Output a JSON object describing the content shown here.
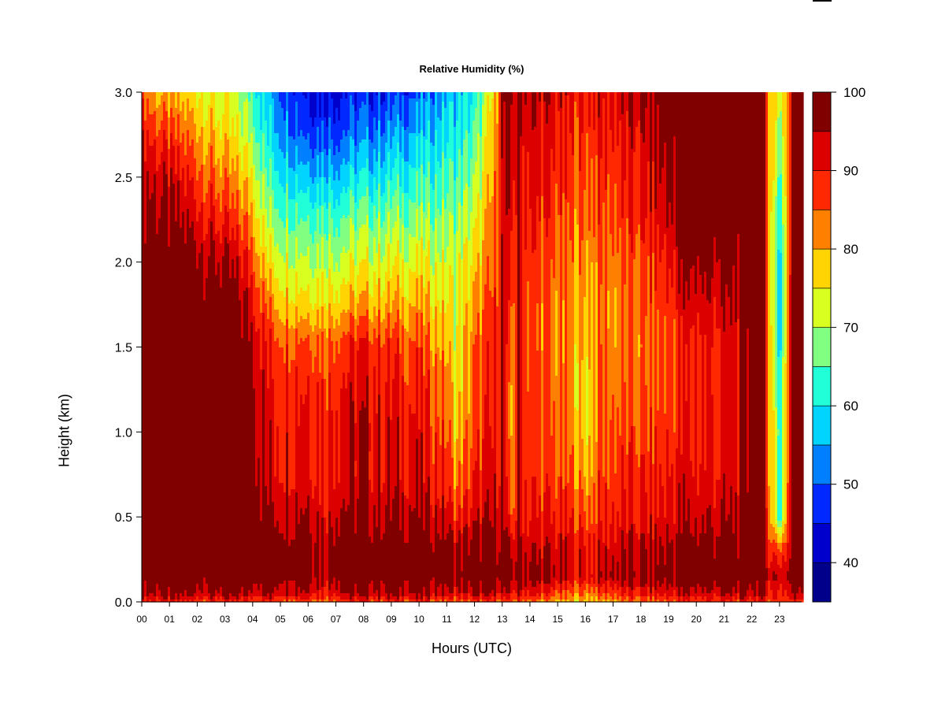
{
  "chart_data": {
    "type": "heatmap",
    "title": "Relative Humidity (%)",
    "xlabel": "Hours (UTC)",
    "ylabel": "Height (km)",
    "x_ticks": [
      "00",
      "01",
      "02",
      "03",
      "04",
      "05",
      "06",
      "07",
      "08",
      "09",
      "10",
      "11",
      "12",
      "13",
      "14",
      "15",
      "16",
      "17",
      "18",
      "19",
      "20",
      "21",
      "22",
      "23"
    ],
    "y_ticks": [
      "0.0",
      "0.5",
      "1.0",
      "1.5",
      "2.0",
      "2.5",
      "3.0"
    ],
    "xlim": [
      0,
      23.8
    ],
    "ylim": [
      0,
      3.0
    ],
    "colorbar": {
      "range": [
        35,
        100
      ],
      "ticks": [
        "40",
        "50",
        "60",
        "70",
        "80",
        "90",
        "100"
      ],
      "levels": [
        {
          "from": 35,
          "to": 40,
          "color": "#00008b"
        },
        {
          "from": 40,
          "to": 45,
          "color": "#0000cd"
        },
        {
          "from": 45,
          "to": 50,
          "color": "#0028ff"
        },
        {
          "from": 50,
          "to": 55,
          "color": "#0080ff"
        },
        {
          "from": 55,
          "to": 60,
          "color": "#00d4ff"
        },
        {
          "from": 60,
          "to": 65,
          "color": "#20ffd8"
        },
        {
          "from": 65,
          "to": 70,
          "color": "#80ff80"
        },
        {
          "from": 70,
          "to": 75,
          "color": "#d8ff20"
        },
        {
          "from": 75,
          "to": 80,
          "color": "#ffd400"
        },
        {
          "from": 80,
          "to": 85,
          "color": "#ff8000"
        },
        {
          "from": 85,
          "to": 90,
          "color": "#ff2800"
        },
        {
          "from": 90,
          "to": 95,
          "color": "#dc0000"
        },
        {
          "from": 95,
          "to": 100,
          "color": "#800000"
        }
      ]
    },
    "heights_km": [
      0.0,
      0.05,
      0.15,
      0.3,
      0.5,
      0.75,
      1.0,
      1.25,
      1.5,
      1.75,
      2.0,
      2.25,
      2.5,
      2.75,
      3.0
    ],
    "profiles": [
      {
        "hour": 0.0,
        "rh": [
          90,
          96,
          100,
          100,
          100,
          100,
          100,
          100,
          100,
          100,
          100,
          98,
          96,
          92,
          86
        ]
      },
      {
        "hour": 0.5,
        "rh": [
          90,
          96,
          100,
          100,
          100,
          100,
          100,
          100,
          100,
          100,
          100,
          97,
          94,
          88,
          80
        ]
      },
      {
        "hour": 1.0,
        "rh": [
          90,
          96,
          100,
          100,
          100,
          100,
          100,
          100,
          100,
          100,
          99,
          96,
          92,
          86,
          78
        ]
      },
      {
        "hour": 2.0,
        "rh": [
          88,
          96,
          100,
          100,
          100,
          100,
          100,
          100,
          100,
          100,
          98,
          93,
          88,
          82,
          76
        ]
      },
      {
        "hour": 3.0,
        "rh": [
          88,
          96,
          100,
          100,
          100,
          100,
          100,
          100,
          100,
          99,
          95,
          88,
          82,
          76,
          72
        ]
      },
      {
        "hour": 4.0,
        "rh": [
          88,
          96,
          100,
          100,
          100,
          100,
          100,
          99,
          97,
          93,
          88,
          82,
          76,
          70,
          65
        ]
      },
      {
        "hour": 4.5,
        "rh": [
          88,
          96,
          100,
          100,
          97,
          93,
          92,
          91,
          90,
          84,
          76,
          70,
          65,
          60,
          57
        ]
      },
      {
        "hour": 5.0,
        "rh": [
          88,
          96,
          100,
          100,
          96,
          92,
          92,
          90,
          88,
          80,
          74,
          68,
          62,
          56,
          52
        ]
      },
      {
        "hour": 6.0,
        "rh": [
          88,
          96,
          100,
          100,
          97,
          93,
          93,
          91,
          88,
          78,
          72,
          66,
          58,
          50,
          45
        ]
      },
      {
        "hour": 6.7,
        "rh": [
          85,
          90,
          96,
          96,
          92,
          90,
          90,
          88,
          86,
          78,
          72,
          66,
          58,
          50,
          45
        ]
      },
      {
        "hour": 7.0,
        "rh": [
          88,
          96,
          100,
          100,
          97,
          93,
          93,
          91,
          88,
          79,
          72,
          66,
          58,
          50,
          45
        ]
      },
      {
        "hour": 8.0,
        "rh": [
          88,
          96,
          100,
          100,
          96,
          93,
          94,
          92,
          90,
          80,
          73,
          67,
          59,
          52,
          46
        ]
      },
      {
        "hour": 9.0,
        "rh": [
          88,
          96,
          100,
          100,
          96,
          92,
          92,
          90,
          88,
          80,
          74,
          68,
          61,
          54,
          47
        ]
      },
      {
        "hour": 10.0,
        "rh": [
          88,
          96,
          100,
          100,
          96,
          92,
          91,
          89,
          86,
          80,
          74,
          68,
          62,
          56,
          50
        ]
      },
      {
        "hour": 11.0,
        "rh": [
          86,
          94,
          100,
          99,
          93,
          88,
          86,
          84,
          80,
          76,
          72,
          68,
          64,
          60,
          56
        ]
      },
      {
        "hour": 11.3,
        "rh": [
          84,
          92,
          98,
          96,
          88,
          82,
          78,
          75,
          74,
          73,
          72,
          68,
          64,
          60,
          57
        ]
      },
      {
        "hour": 12.0,
        "rh": [
          86,
          94,
          100,
          98,
          92,
          88,
          86,
          84,
          83,
          80,
          76,
          72,
          68,
          64,
          60
        ]
      },
      {
        "hour": 12.7,
        "rh": [
          86,
          94,
          100,
          98,
          94,
          91,
          90,
          89,
          88,
          86,
          84,
          82,
          80,
          78,
          76
        ]
      },
      {
        "hour": 13.0,
        "rh": [
          86,
          94,
          100,
          99,
          96,
          94,
          94,
          94,
          94,
          94,
          94,
          93,
          93,
          94,
          95
        ]
      },
      {
        "hour": 13.3,
        "rh": [
          84,
          90,
          96,
          94,
          84,
          80,
          78,
          78,
          80,
          84,
          88,
          90,
          92,
          94,
          95
        ]
      },
      {
        "hour": 13.6,
        "rh": [
          86,
          94,
          99,
          96,
          94,
          92,
          92,
          92,
          92,
          92,
          92,
          92,
          93,
          95,
          96
        ]
      },
      {
        "hour": 14.0,
        "rh": [
          84,
          92,
          97,
          94,
          90,
          88,
          88,
          87,
          86,
          86,
          88,
          90,
          92,
          93,
          95
        ]
      },
      {
        "hour": 15.0,
        "rh": [
          80,
          86,
          94,
          93,
          89,
          86,
          84,
          83,
          82,
          82,
          84,
          86,
          88,
          90,
          92
        ]
      },
      {
        "hour": 15.5,
        "rh": [
          78,
          84,
          92,
          92,
          88,
          84,
          82,
          80,
          80,
          80,
          82,
          84,
          86,
          88,
          90
        ]
      },
      {
        "hour": 16.0,
        "rh": [
          78,
          84,
          92,
          91,
          86,
          80,
          76,
          76,
          78,
          80,
          82,
          84,
          86,
          88,
          90
        ]
      },
      {
        "hour": 16.5,
        "rh": [
          80,
          86,
          94,
          92,
          88,
          86,
          85,
          84,
          84,
          84,
          84,
          86,
          88,
          90,
          92
        ]
      },
      {
        "hour": 17.0,
        "rh": [
          82,
          88,
          96,
          94,
          90,
          88,
          86,
          84,
          83,
          82,
          84,
          86,
          88,
          90,
          92
        ]
      },
      {
        "hour": 18.0,
        "rh": [
          84,
          90,
          96,
          94,
          90,
          88,
          86,
          84,
          82,
          84,
          86,
          88,
          90,
          92,
          94
        ]
      },
      {
        "hour": 19.0,
        "rh": [
          86,
          92,
          98,
          96,
          92,
          90,
          88,
          86,
          86,
          88,
          90,
          94,
          96,
          98,
          98
        ]
      },
      {
        "hour": 19.5,
        "rh": [
          88,
          94,
          100,
          98,
          94,
          92,
          90,
          89,
          89,
          92,
          96,
          100,
          100,
          100,
          100
        ]
      },
      {
        "hour": 20.0,
        "rh": [
          88,
          94,
          100,
          98,
          94,
          91,
          90,
          90,
          90,
          93,
          97,
          100,
          100,
          100,
          100
        ]
      },
      {
        "hour": 21.0,
        "rh": [
          88,
          94,
          100,
          98,
          94,
          91,
          91,
          90,
          90,
          93,
          96,
          100,
          100,
          100,
          100
        ]
      },
      {
        "hour": 21.8,
        "rh": [
          88,
          95,
          100,
          99,
          96,
          94,
          94,
          94,
          94,
          96,
          98,
          100,
          100,
          100,
          100
        ]
      },
      {
        "hour": 22.0,
        "rh": [
          90,
          96,
          100,
          100,
          100,
          100,
          100,
          100,
          100,
          100,
          100,
          100,
          100,
          100,
          100
        ]
      },
      {
        "hour": 22.3,
        "rh": [
          90,
          96,
          100,
          100,
          100,
          100,
          100,
          100,
          100,
          100,
          100,
          100,
          100,
          100,
          100
        ]
      },
      {
        "hour": 22.55,
        "rh": [
          88,
          92,
          96,
          92,
          90,
          88,
          88,
          88,
          88,
          88,
          86,
          86,
          86,
          86,
          86
        ]
      },
      {
        "hour": 23.0,
        "rh": [
          88,
          90,
          94,
          86,
          62,
          62,
          64,
          60,
          58,
          56,
          58,
          60,
          64,
          68,
          72
        ]
      },
      {
        "hour": 23.35,
        "rh": [
          88,
          92,
          96,
          92,
          90,
          88,
          88,
          88,
          88,
          88,
          86,
          86,
          86,
          86,
          86
        ]
      },
      {
        "hour": 23.5,
        "rh": [
          90,
          96,
          100,
          100,
          100,
          100,
          100,
          100,
          100,
          100,
          100,
          100,
          100,
          100,
          100
        ]
      },
      {
        "hour": 23.8,
        "rh": [
          90,
          96,
          100,
          100,
          100,
          100,
          100,
          100,
          100,
          100,
          100,
          100,
          100,
          100,
          100
        ]
      }
    ]
  }
}
